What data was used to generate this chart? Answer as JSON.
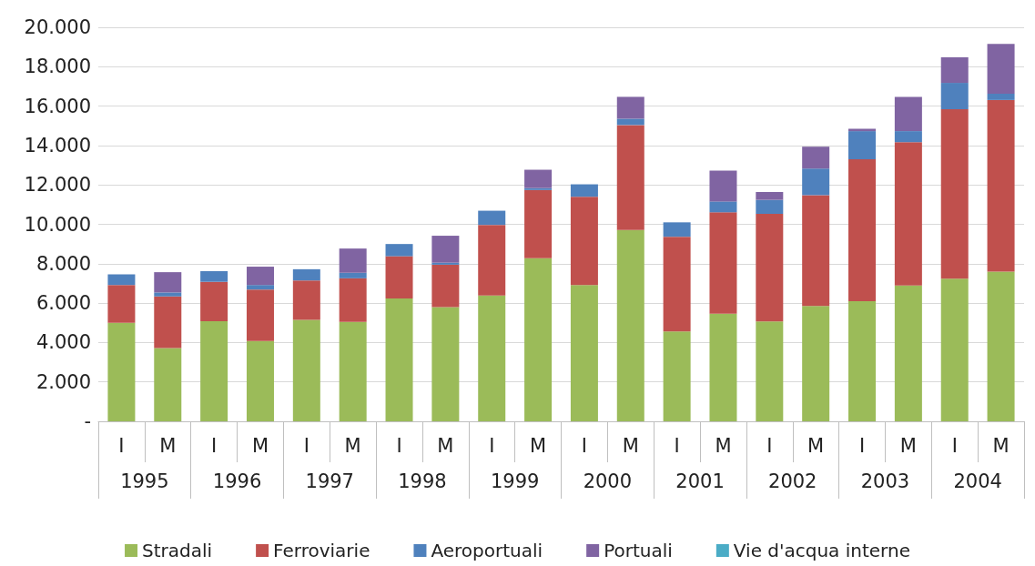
{
  "chart_data": {
    "type": "bar",
    "stacked": true,
    "categories": [
      "I",
      "M",
      "I",
      "M",
      "I",
      "M",
      "I",
      "M",
      "I",
      "M",
      "I",
      "M",
      "I",
      "M",
      "I",
      "M",
      "I",
      "M",
      "I",
      "M"
    ],
    "series": [
      {
        "name": "Stradali",
        "color": "#9bbb59",
        "values": [
          5000,
          3720,
          5080,
          4080,
          5150,
          5050,
          6230,
          5800,
          6380,
          8280,
          6920,
          9710,
          4560,
          5460,
          5070,
          5860,
          6100,
          6890,
          7240,
          7600
        ]
      },
      {
        "name": "Ferroviarie",
        "color": "#c0504d",
        "values": [
          1920,
          2620,
          2000,
          2610,
          2000,
          2210,
          2150,
          2150,
          3590,
          3460,
          4480,
          5330,
          4810,
          5150,
          5460,
          5620,
          7200,
          7280,
          8600,
          8710
        ]
      },
      {
        "name": "Aeroportuali",
        "color": "#4f81bd",
        "values": [
          540,
          200,
          540,
          230,
          570,
          280,
          620,
          100,
          720,
          100,
          630,
          320,
          730,
          550,
          710,
          1350,
          1430,
          560,
          1340,
          320
        ]
      },
      {
        "name": "Portuali",
        "color": "#8064a2",
        "values": [
          0,
          1030,
          0,
          930,
          0,
          1230,
          0,
          1370,
          0,
          930,
          0,
          1110,
          0,
          1560,
          400,
          1110,
          120,
          1740,
          1300,
          2530
        ]
      },
      {
        "name": "Vie d'acqua interne",
        "color": "#4bacc6",
        "values": [
          0,
          0,
          0,
          0,
          0,
          0,
          0,
          0,
          0,
          0,
          0,
          0,
          0,
          0,
          0,
          0,
          0,
          0,
          0,
          0
        ]
      }
    ],
    "annotations": [
      "1995",
      "1996",
      "1997",
      "1998",
      "1999",
      "2000",
      "2001",
      "2002",
      "2003",
      "2004"
    ],
    "ylim": [
      0,
      20000
    ],
    "yticks": [
      {
        "value": 0,
        "label": "-"
      },
      {
        "value": 2000,
        "label": "2.000"
      },
      {
        "value": 4000,
        "label": "4.000"
      },
      {
        "value": 6000,
        "label": "6.000"
      },
      {
        "value": 8000,
        "label": "8.000"
      },
      {
        "value": 10000,
        "label": "10.000"
      },
      {
        "value": 12000,
        "label": "12.000"
      },
      {
        "value": 14000,
        "label": "14.000"
      },
      {
        "value": 16000,
        "label": "16.000"
      },
      {
        "value": 18000,
        "label": "18.000"
      },
      {
        "value": 20000,
        "label": "20.000"
      }
    ],
    "grid": "y",
    "legend": "bottom"
  }
}
